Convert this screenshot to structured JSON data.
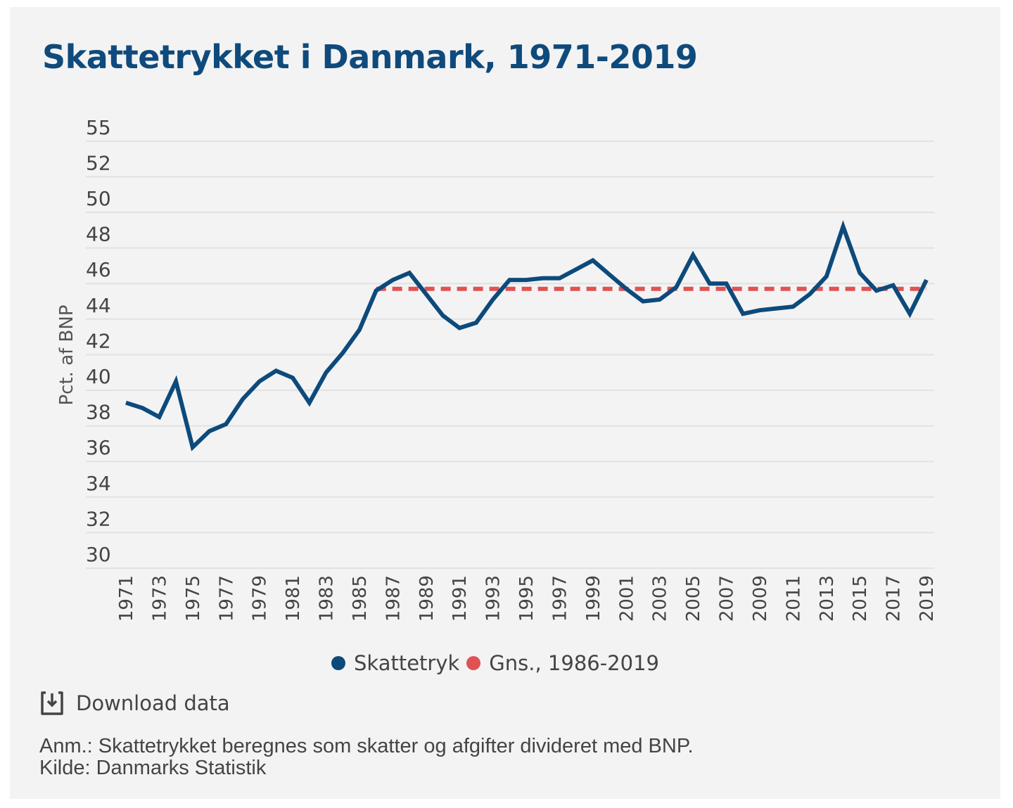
{
  "title": "Skattetrykket i Danmark, 1971-2019",
  "colors": {
    "title": "#0f4a7c",
    "series_main": "#0d4a7c",
    "series_avg": "#e05252",
    "grid": "#e2e2e2",
    "panel_bg": "#f3f3f3"
  },
  "legend": {
    "items": [
      {
        "label": "Skattetryk",
        "color": "#0d4a7c"
      },
      {
        "label": "Gns., 1986-2019",
        "color": "#e05252"
      }
    ]
  },
  "download": {
    "label": "Download data",
    "icon": "download-icon"
  },
  "footnote": {
    "note": "Anm.: Skattetrykket beregnes som skatter og afgifter divideret med BNP.",
    "source": "Kilde: Danmarks Statistik"
  },
  "chart_data": {
    "type": "line",
    "title": "Skattetrykket i Danmark, 1971-2019",
    "xlabel": "",
    "ylabel": "Pct. af BNP",
    "ylim": [
      30,
      55
    ],
    "y_ticks": [
      30,
      32,
      34,
      36,
      38,
      40,
      42,
      44,
      46,
      48,
      50,
      52,
      55
    ],
    "x_tick_labels": [
      "1971",
      "1973",
      "1975",
      "1977",
      "1979",
      "1981",
      "1983",
      "1985",
      "1987",
      "1989",
      "1991",
      "1993",
      "1995",
      "1997",
      "1999",
      "2001",
      "2003",
      "2005",
      "2007",
      "2009",
      "2011",
      "2013",
      "2015",
      "2017",
      "2019"
    ],
    "grid": true,
    "legend_position": "bottom-center",
    "x": [
      1971,
      1972,
      1973,
      1974,
      1975,
      1976,
      1977,
      1978,
      1979,
      1980,
      1981,
      1982,
      1983,
      1984,
      1985,
      1986,
      1987,
      1988,
      1989,
      1990,
      1991,
      1992,
      1993,
      1994,
      1995,
      1996,
      1997,
      1998,
      1999,
      2000,
      2001,
      2002,
      2003,
      2004,
      2005,
      2006,
      2007,
      2008,
      2009,
      2010,
      2011,
      2012,
      2013,
      2014,
      2015,
      2016,
      2017,
      2018,
      2019
    ],
    "series": [
      {
        "name": "Skattetryk",
        "style": "solid",
        "values": [
          39.3,
          39.0,
          38.5,
          40.5,
          36.8,
          37.7,
          38.1,
          39.5,
          40.5,
          41.1,
          40.7,
          39.3,
          41.0,
          42.1,
          43.4,
          45.6,
          46.2,
          46.6,
          45.4,
          44.2,
          43.5,
          43.8,
          45.1,
          46.2,
          46.2,
          46.3,
          46.3,
          46.8,
          47.3,
          46.5,
          45.7,
          45.0,
          45.1,
          45.8,
          47.6,
          46.0,
          46.0,
          44.3,
          44.5,
          44.6,
          44.7,
          45.4,
          46.4,
          49.2,
          46.6,
          45.6,
          45.9,
          44.3,
          46.2
        ]
      },
      {
        "name": "Gns., 1986-2019",
        "style": "dashed",
        "x_range": [
          1986,
          2019
        ],
        "value": 45.7
      }
    ]
  }
}
